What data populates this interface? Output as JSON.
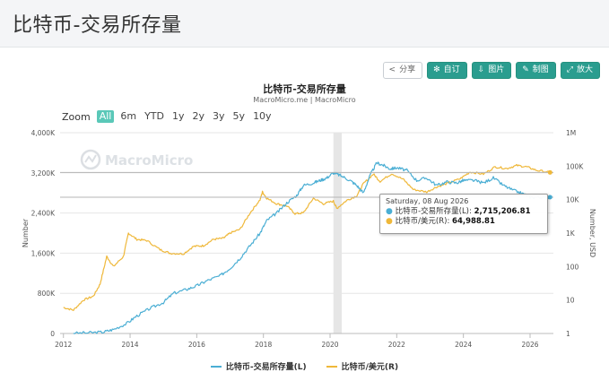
{
  "page": {
    "title": "比特币-交易所存量"
  },
  "toolbar": {
    "share": "分享",
    "subscribe": "自订",
    "image": "图片",
    "draw": "制图",
    "expand": "放大"
  },
  "zoom": {
    "label": "Zoom",
    "options": [
      "All",
      "6m",
      "YTD",
      "1y",
      "2y",
      "3y",
      "5y",
      "10y"
    ],
    "active": "All"
  },
  "watermark": "MacroMicro",
  "tooltip": {
    "date": "Saturday, 08 Aug 2026",
    "series1_label": "比特币-交易所存量(L): ",
    "series1_value": "2,715,206.81",
    "series2_label": "比特币/美元(R): ",
    "series2_value": "64,988.81"
  },
  "colors": {
    "series1": "#4aaed4",
    "series2": "#efb83a",
    "accent": "#2a9d8f"
  },
  "chart_data": {
    "type": "line",
    "title": "比特币-交易所存量",
    "subtitle": "MacroMicro.me | MacroMicro",
    "x_ticks": [
      "2012",
      "2014",
      "2016",
      "2018",
      "2020",
      "2022",
      "2024",
      "2026"
    ],
    "x_range": [
      2011.9,
      2026.7
    ],
    "left_axis": {
      "label": "Number",
      "range": [
        0,
        4000000
      ],
      "ticks": [
        0,
        800000,
        1600000,
        2400000,
        3200000,
        4000000
      ],
      "tick_labels": [
        "0",
        "800K",
        "1,600K",
        "2,400K",
        "3,200K",
        "4,000K"
      ]
    },
    "right_axis": {
      "label": "Number, USD",
      "scale": "log",
      "range": [
        1,
        1000000
      ],
      "ticks": [
        1,
        10,
        100,
        1000,
        10000,
        100000,
        1000000
      ],
      "tick_labels": [
        "1",
        "10",
        "100",
        "1K",
        "10K",
        "100K",
        "1M"
      ]
    },
    "shaded_band": [
      2020.1,
      2020.35
    ],
    "grid": "horizontal",
    "legend_position": "bottom-center",
    "series": [
      {
        "name": "比特币-交易所存量(L)",
        "axis": "left",
        "x": [
          2012.3,
          2012.8,
          2013.2,
          2013.5,
          2013.9,
          2014.2,
          2014.6,
          2015.0,
          2015.3,
          2015.7,
          2016.0,
          2016.3,
          2016.7,
          2017.0,
          2017.3,
          2017.6,
          2017.9,
          2018.1,
          2018.4,
          2018.7,
          2019.0,
          2019.2,
          2019.5,
          2019.7,
          2019.9,
          2020.1,
          2020.3,
          2020.6,
          2020.8,
          2021.0,
          2021.2,
          2021.4,
          2021.6,
          2021.8,
          2022.0,
          2022.3,
          2022.6,
          2022.9,
          2023.2,
          2023.5,
          2023.8,
          2024.0,
          2024.3,
          2024.6,
          2024.9,
          2025.2,
          2025.5,
          2025.8,
          2026.0,
          2026.3,
          2026.6
        ],
        "y": [
          5000,
          15000,
          30000,
          80000,
          200000,
          350000,
          500000,
          620000,
          800000,
          880000,
          950000,
          1050000,
          1150000,
          1300000,
          1500000,
          1750000,
          2000000,
          2250000,
          2400000,
          2600000,
          2750000,
          2950000,
          3000000,
          3050000,
          3100000,
          3200000,
          3150000,
          3050000,
          2950000,
          2800000,
          3150000,
          3400000,
          3350000,
          3280000,
          3300000,
          3250000,
          3050000,
          3100000,
          2950000,
          3020000,
          3000000,
          3050000,
          3050000,
          3000000,
          3100000,
          2950000,
          2850000,
          2780000,
          2720000,
          2710000,
          2715206.81
        ]
      },
      {
        "name": "比特币/美元(R)",
        "axis": "right",
        "x": [
          2012.0,
          2012.3,
          2012.6,
          2012.9,
          2013.1,
          2013.3,
          2013.5,
          2013.8,
          2013.95,
          2014.2,
          2014.5,
          2014.9,
          2015.2,
          2015.6,
          2015.9,
          2016.2,
          2016.5,
          2016.8,
          2017.0,
          2017.3,
          2017.6,
          2017.9,
          2017.97,
          2018.1,
          2018.4,
          2018.7,
          2018.95,
          2019.2,
          2019.5,
          2019.8,
          2020.1,
          2020.2,
          2020.5,
          2020.8,
          2021.0,
          2021.3,
          2021.5,
          2021.85,
          2022.2,
          2022.5,
          2022.9,
          2023.2,
          2023.5,
          2023.9,
          2024.2,
          2024.6,
          2024.95,
          2025.3,
          2025.6,
          2025.9,
          2026.2,
          2026.6
        ],
        "y": [
          6,
          5,
          10,
          13,
          30,
          200,
          100,
          200,
          1000,
          650,
          600,
          320,
          250,
          240,
          400,
          420,
          650,
          700,
          1000,
          1300,
          4000,
          10000,
          17000,
          11000,
          7500,
          6500,
          3800,
          4000,
          11000,
          7500,
          9000,
          5500,
          9500,
          13000,
          30000,
          58000,
          35000,
          60000,
          40000,
          20000,
          17000,
          24000,
          30000,
          42000,
          67000,
          58000,
          95000,
          85000,
          105000,
          95000,
          75000,
          64988.81
        ]
      }
    ]
  }
}
